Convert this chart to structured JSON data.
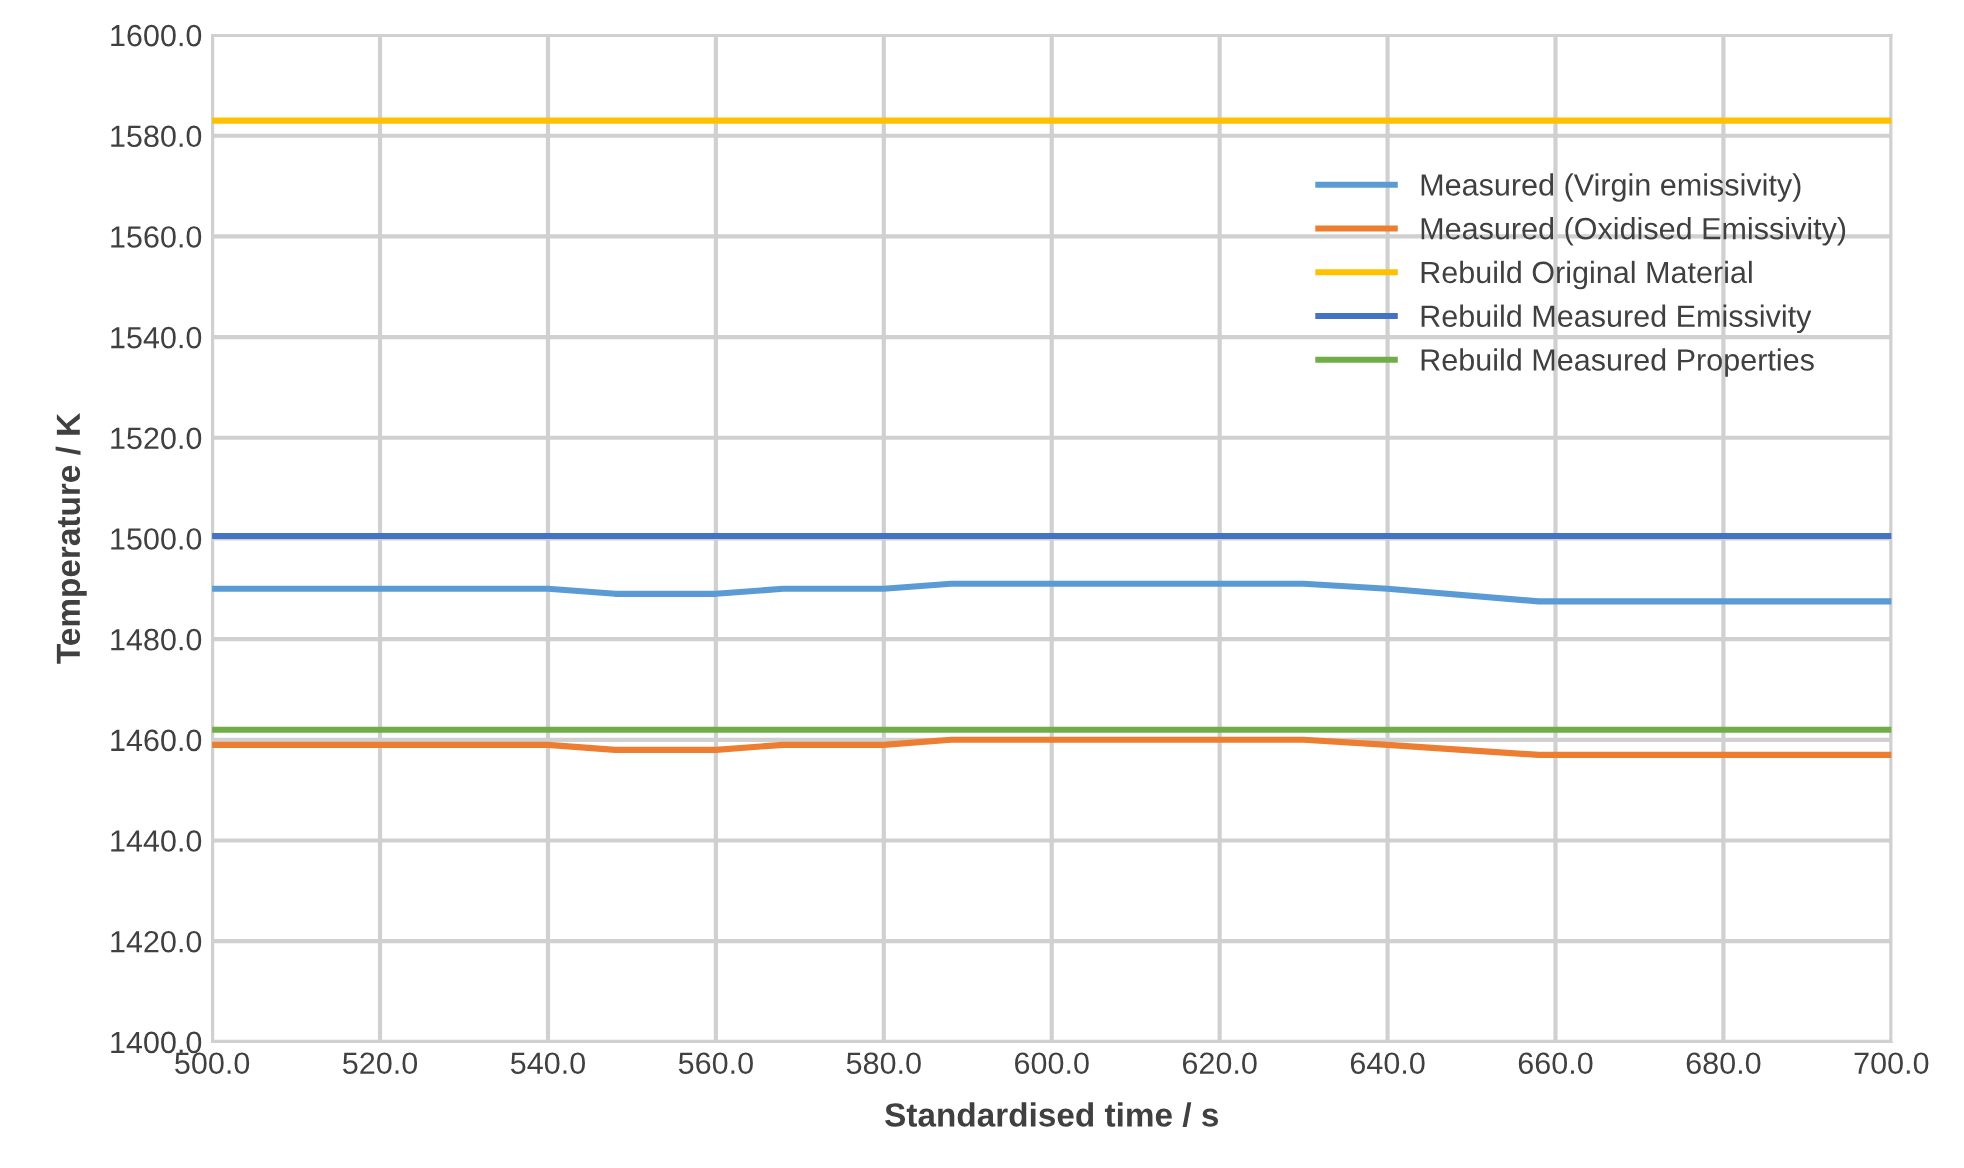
{
  "chart_data": {
    "type": "line",
    "xlabel": "Standardised time / s",
    "ylabel": "Temperature / K",
    "xlim": [
      500,
      700
    ],
    "xticks": [
      {
        "value": 500,
        "label": "500.0"
      },
      {
        "value": 520,
        "label": "520.0"
      },
      {
        "value": 540,
        "label": "540.0"
      },
      {
        "value": 560,
        "label": "560.0"
      },
      {
        "value": 580,
        "label": "580.0"
      },
      {
        "value": 600,
        "label": "600.0"
      },
      {
        "value": 620,
        "label": "620.0"
      },
      {
        "value": 640,
        "label": "640.0"
      },
      {
        "value": 660,
        "label": "660.0"
      },
      {
        "value": 680,
        "label": "680.0"
      },
      {
        "value": 700,
        "label": "700.0"
      }
    ],
    "ylim": [
      1400,
      1600
    ],
    "yticks": [
      {
        "value": 1400,
        "label": "1400.0"
      },
      {
        "value": 1420,
        "label": "1420.0"
      },
      {
        "value": 1440,
        "label": "1440.0"
      },
      {
        "value": 1460,
        "label": "1460.0"
      },
      {
        "value": 1480,
        "label": "1480.0"
      },
      {
        "value": 1500,
        "label": "1500.0"
      },
      {
        "value": 1520,
        "label": "1520.0"
      },
      {
        "value": 1540,
        "label": "1540.0"
      },
      {
        "value": 1560,
        "label": "1560.0"
      },
      {
        "value": 1580,
        "label": "1580.0"
      },
      {
        "value": 1600,
        "label": "1600.0"
      }
    ],
    "grid": true,
    "legend": "top right",
    "marker": "none",
    "line_style": "solid",
    "series": [
      {
        "name": "Measured (Virgin emissivity)",
        "color": "#5b9bd5",
        "x": [
          500,
          540,
          548,
          560,
          568,
          580,
          588,
          630,
          640,
          658,
          700
        ],
        "values": [
          1490,
          1490,
          1489,
          1489,
          1490,
          1490,
          1491,
          1491,
          1490,
          1487.5,
          1487.5
        ]
      },
      {
        "name": "Measured (Oxidised Emissivity)",
        "color": "#ed7d31",
        "x": [
          500,
          540,
          548,
          560,
          568,
          580,
          588,
          630,
          640,
          658,
          700
        ],
        "values": [
          1459,
          1459,
          1458,
          1458,
          1459,
          1459,
          1460,
          1460,
          1459,
          1457,
          1457
        ]
      },
      {
        "name": "Rebuild Original Material",
        "color": "#ffc000",
        "x": [
          500,
          700
        ],
        "values": [
          1583,
          1583
        ]
      },
      {
        "name": "Rebuild Measured Emissivity",
        "color": "#4472c4",
        "x": [
          500,
          700
        ],
        "values": [
          1500.5,
          1500.5
        ]
      },
      {
        "name": "Rebuild Measured Properties",
        "color": "#70ad47",
        "x": [
          500,
          700
        ],
        "values": [
          1462,
          1462
        ]
      }
    ]
  }
}
